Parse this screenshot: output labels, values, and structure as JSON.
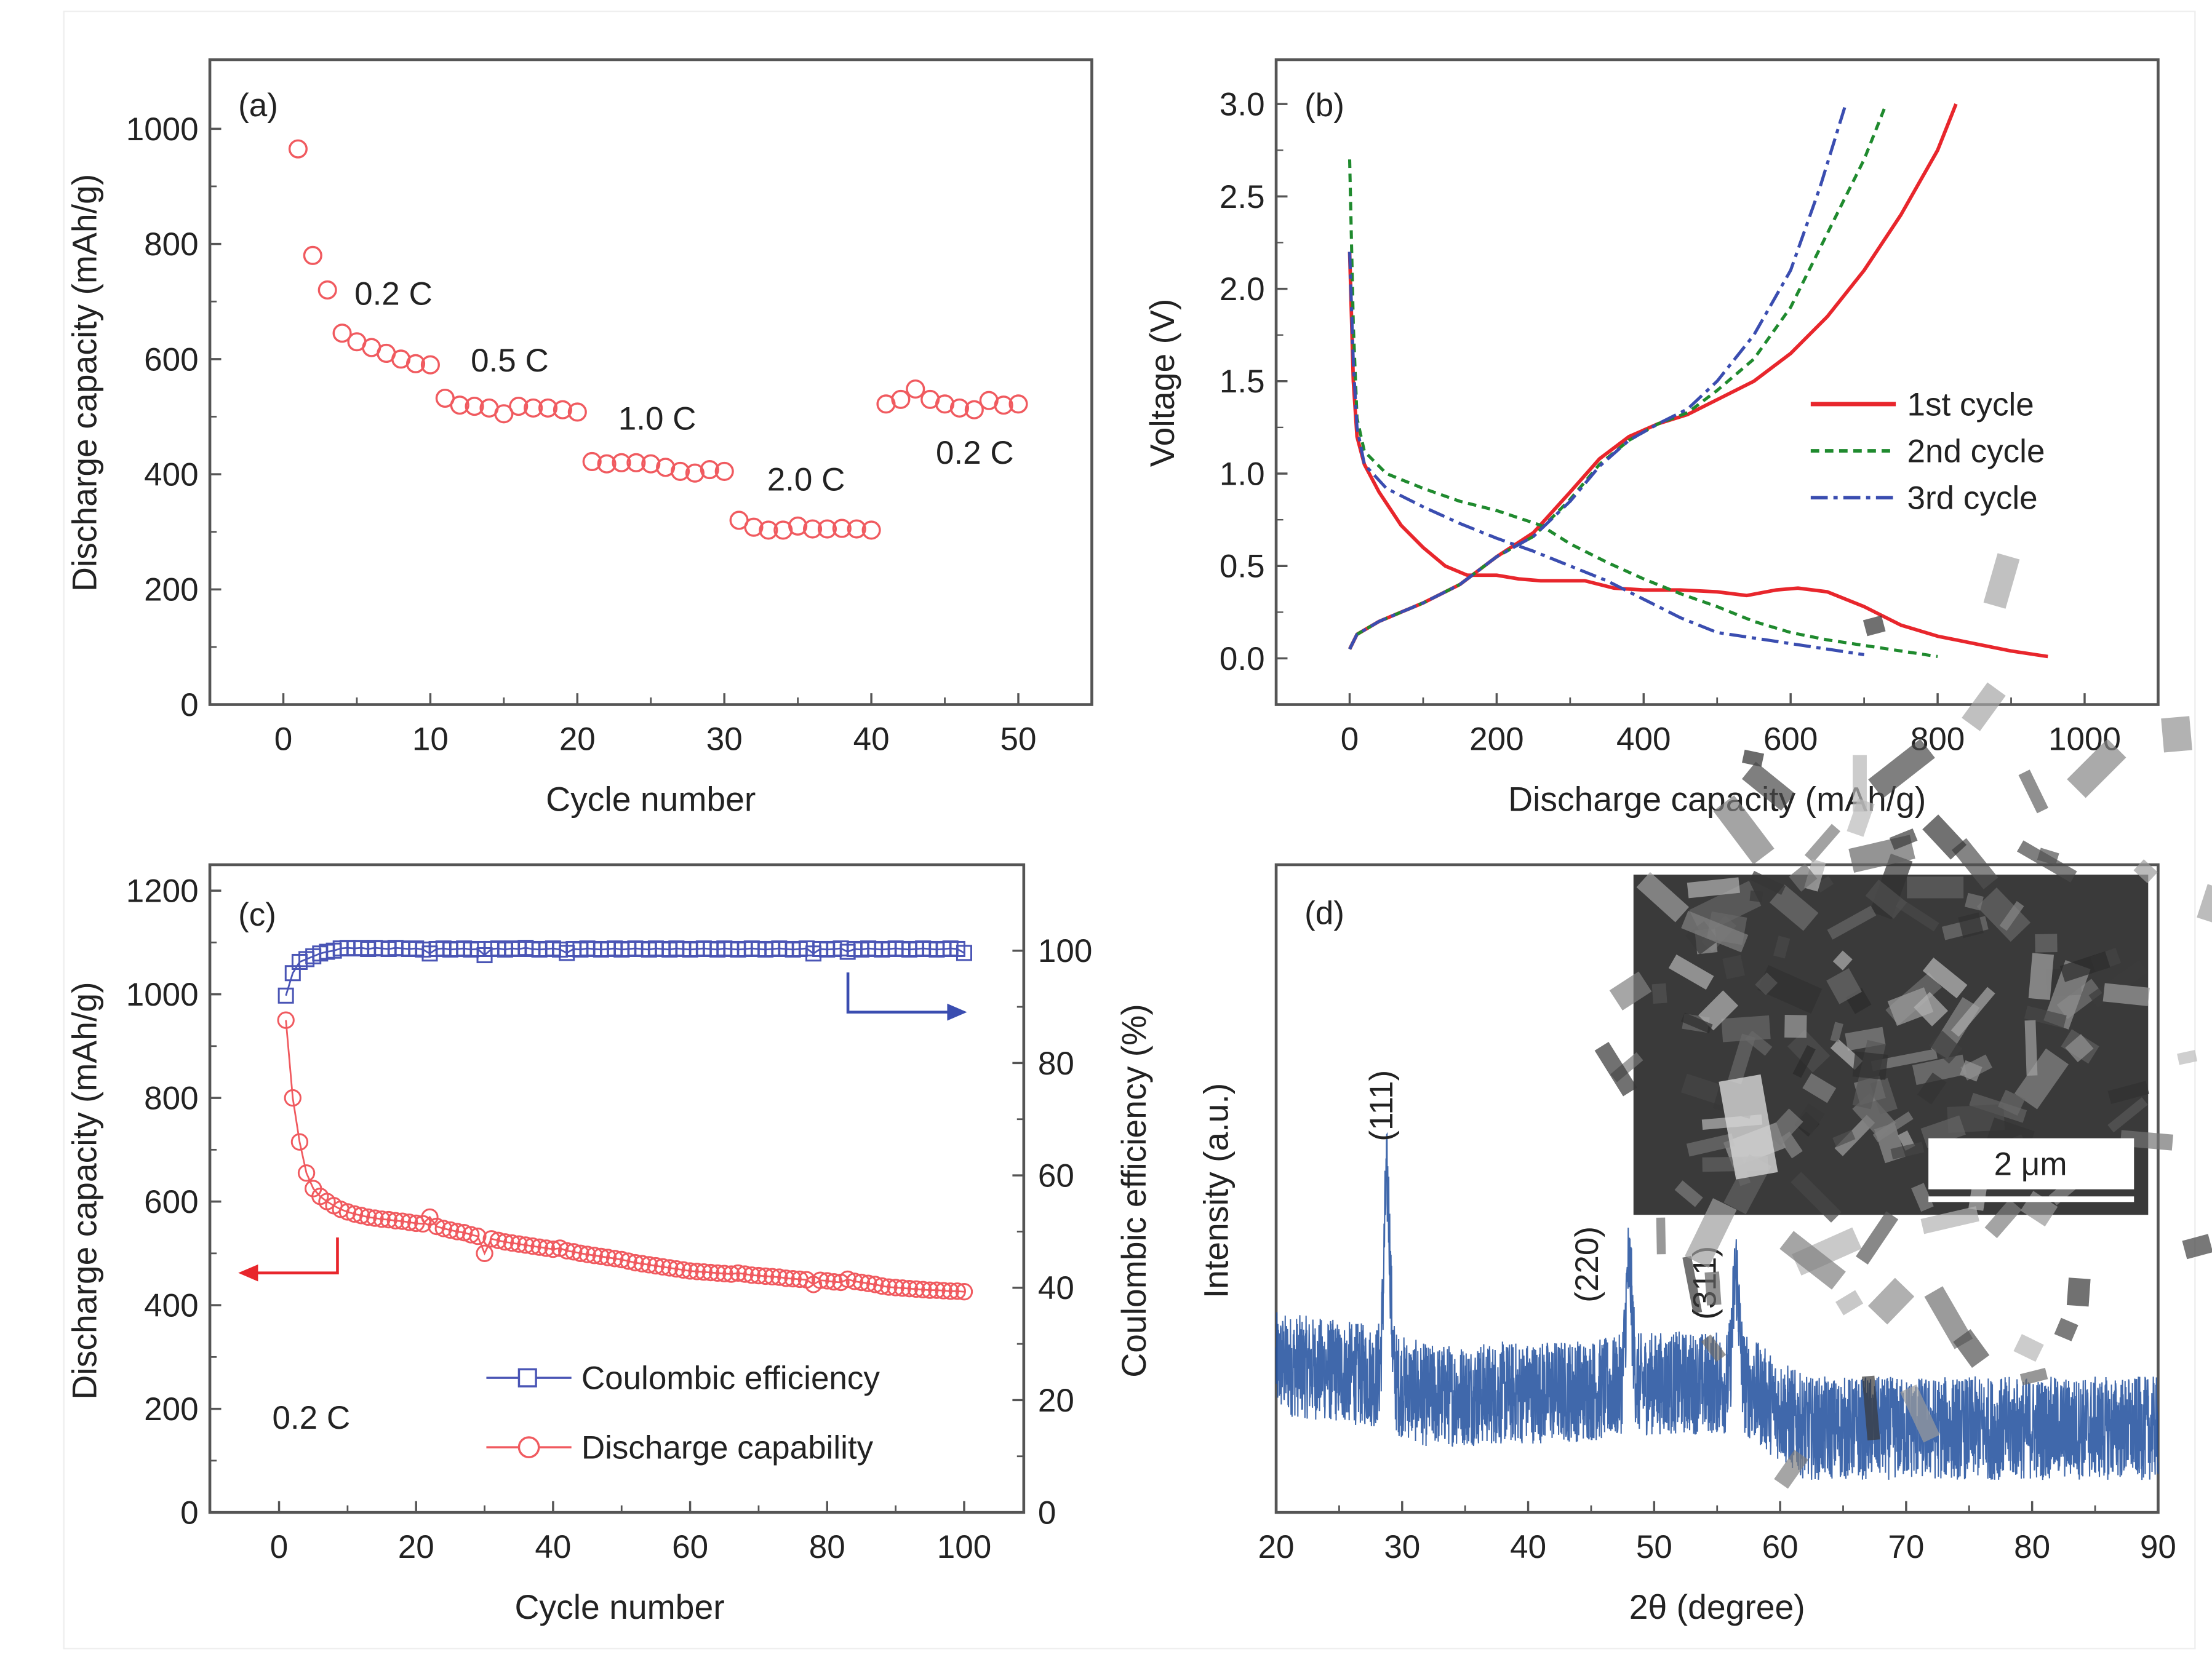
{
  "chart_data": [
    {
      "panel": "(a)",
      "type": "scatter",
      "xlabel": "Cycle number",
      "ylabel": "Discharge capacity (mAh/g)",
      "xlim": [
        -5,
        55
      ],
      "ylim": [
        0,
        1120
      ],
      "xticks": [
        0,
        10,
        20,
        30,
        40,
        50
      ],
      "yticks": [
        0,
        200,
        400,
        600,
        800,
        1000
      ],
      "marker_color": "#f05a5f",
      "annotations": [
        "0.2 C",
        "0.5 C",
        "1.0 C",
        "2.0 C",
        "0.2 C"
      ],
      "x": [
        1,
        2,
        3,
        4,
        5,
        6,
        7,
        8,
        9,
        10,
        11,
        12,
        13,
        14,
        15,
        16,
        17,
        18,
        19,
        20,
        21,
        22,
        23,
        24,
        25,
        26,
        27,
        28,
        29,
        30,
        31,
        32,
        33,
        34,
        35,
        36,
        37,
        38,
        39,
        40,
        41,
        42,
        43,
        44,
        45,
        46,
        47,
        48,
        49,
        50
      ],
      "values": [
        965,
        780,
        720,
        645,
        630,
        620,
        610,
        600,
        592,
        590,
        532,
        520,
        518,
        515,
        505,
        518,
        515,
        515,
        512,
        508,
        422,
        418,
        420,
        420,
        418,
        412,
        405,
        402,
        408,
        405,
        320,
        308,
        303,
        303,
        310,
        305,
        305,
        306,
        305,
        303,
        522,
        530,
        548,
        530,
        522,
        515,
        512,
        528,
        520,
        522
      ]
    },
    {
      "panel": "(b)",
      "type": "line",
      "xlabel": "Discharge capacity (mAh/g)",
      "ylabel": "Voltage (V)",
      "xlim": [
        -100,
        1100
      ],
      "ylim": [
        -0.25,
        3.24
      ],
      "xticks": [
        0,
        200,
        400,
        600,
        800,
        1000
      ],
      "yticks": [
        "0.0",
        "0.5",
        "1.0",
        "1.5",
        "2.0",
        "2.5",
        "3.0"
      ],
      "legend_position": "center-right",
      "series": [
        {
          "name": "1st cycle",
          "color": "#e8262c",
          "style": "solid",
          "discharge": [
            [
              0,
              2.2
            ],
            [
              5,
              1.5
            ],
            [
              10,
              1.2
            ],
            [
              20,
              1.05
            ],
            [
              40,
              0.9
            ],
            [
              70,
              0.72
            ],
            [
              100,
              0.6
            ],
            [
              130,
              0.5
            ],
            [
              160,
              0.45
            ],
            [
              200,
              0.45
            ],
            [
              230,
              0.43
            ],
            [
              260,
              0.42
            ],
            [
              320,
              0.42
            ],
            [
              360,
              0.38
            ],
            [
              400,
              0.37
            ],
            [
              450,
              0.37
            ],
            [
              500,
              0.36
            ],
            [
              540,
              0.34
            ],
            [
              580,
              0.37
            ],
            [
              610,
              0.38
            ],
            [
              650,
              0.36
            ],
            [
              700,
              0.28
            ],
            [
              750,
              0.18
            ],
            [
              800,
              0.12
            ],
            [
              850,
              0.08
            ],
            [
              900,
              0.04
            ],
            [
              950,
              0.01
            ]
          ],
          "charge": [
            [
              0,
              0.05
            ],
            [
              10,
              0.13
            ],
            [
              40,
              0.2
            ],
            [
              100,
              0.3
            ],
            [
              150,
              0.4
            ],
            [
              200,
              0.55
            ],
            [
              250,
              0.68
            ],
            [
              300,
              0.9
            ],
            [
              340,
              1.08
            ],
            [
              380,
              1.2
            ],
            [
              420,
              1.27
            ],
            [
              460,
              1.32
            ],
            [
              500,
              1.4
            ],
            [
              550,
              1.5
            ],
            [
              600,
              1.65
            ],
            [
              650,
              1.85
            ],
            [
              700,
              2.1
            ],
            [
              750,
              2.4
            ],
            [
              800,
              2.75
            ],
            [
              825,
              3.0
            ]
          ]
        },
        {
          "name": "2nd cycle",
          "color": "#1f8a2e",
          "style": "dash",
          "discharge": [
            [
              0,
              2.7
            ],
            [
              5,
              1.8
            ],
            [
              10,
              1.3
            ],
            [
              20,
              1.12
            ],
            [
              50,
              1.0
            ],
            [
              100,
              0.92
            ],
            [
              150,
              0.85
            ],
            [
              200,
              0.8
            ],
            [
              260,
              0.72
            ],
            [
              300,
              0.62
            ],
            [
              350,
              0.52
            ],
            [
              400,
              0.43
            ],
            [
              450,
              0.35
            ],
            [
              500,
              0.28
            ],
            [
              550,
              0.2
            ],
            [
              600,
              0.14
            ],
            [
              650,
              0.1
            ],
            [
              700,
              0.07
            ],
            [
              750,
              0.04
            ],
            [
              800,
              0.01
            ]
          ],
          "charge": [
            [
              0,
              0.05
            ],
            [
              10,
              0.13
            ],
            [
              40,
              0.2
            ],
            [
              100,
              0.3
            ],
            [
              150,
              0.4
            ],
            [
              200,
              0.55
            ],
            [
              250,
              0.66
            ],
            [
              300,
              0.86
            ],
            [
              340,
              1.05
            ],
            [
              380,
              1.18
            ],
            [
              420,
              1.27
            ],
            [
              460,
              1.33
            ],
            [
              500,
              1.45
            ],
            [
              550,
              1.62
            ],
            [
              600,
              1.9
            ],
            [
              650,
              2.3
            ],
            [
              700,
              2.7
            ],
            [
              730,
              3.0
            ]
          ]
        },
        {
          "name": "3rd cycle",
          "color": "#3a4db0",
          "style": "dashdot",
          "discharge": [
            [
              0,
              2.2
            ],
            [
              5,
              1.6
            ],
            [
              10,
              1.25
            ],
            [
              20,
              1.05
            ],
            [
              50,
              0.92
            ],
            [
              100,
              0.82
            ],
            [
              150,
              0.73
            ],
            [
              200,
              0.65
            ],
            [
              250,
              0.58
            ],
            [
              300,
              0.5
            ],
            [
              350,
              0.42
            ],
            [
              400,
              0.32
            ],
            [
              450,
              0.22
            ],
            [
              500,
              0.14
            ],
            [
              550,
              0.11
            ],
            [
              600,
              0.08
            ],
            [
              650,
              0.05
            ],
            [
              700,
              0.02
            ]
          ],
          "charge": [
            [
              0,
              0.05
            ],
            [
              10,
              0.13
            ],
            [
              40,
              0.2
            ],
            [
              100,
              0.3
            ],
            [
              150,
              0.4
            ],
            [
              200,
              0.55
            ],
            [
              250,
              0.66
            ],
            [
              300,
              0.85
            ],
            [
              340,
              1.04
            ],
            [
              380,
              1.18
            ],
            [
              420,
              1.27
            ],
            [
              460,
              1.35
            ],
            [
              500,
              1.5
            ],
            [
              550,
              1.75
            ],
            [
              600,
              2.1
            ],
            [
              640,
              2.55
            ],
            [
              675,
              3.0
            ]
          ]
        }
      ]
    },
    {
      "panel": "(c)",
      "type": "line",
      "xlabel": "Cycle number",
      "ylabel": "Discharge capacity (mAh/g)",
      "ylabel_right": "Coulombic efficiency (%)",
      "xlim": [
        -10.1,
        108.7
      ],
      "ylim": [
        0,
        1250
      ],
      "ylim_right": [
        0,
        115.3
      ],
      "xticks": [
        0,
        20,
        40,
        60,
        80,
        100
      ],
      "yticks": [
        0,
        200,
        400,
        600,
        800,
        1000,
        1200
      ],
      "yticks_right": [
        0,
        20,
        40,
        60,
        80,
        100
      ],
      "annotation": "0.2 C",
      "legend_position": "bottom-center",
      "series": [
        {
          "name": "Coulombic efficiency",
          "axis": "right",
          "marker": "square",
          "color": "#4a55b5",
          "values": [
            92,
            96,
            98,
            98.5,
            99,
            99.5,
            99.8,
            100,
            100.4,
            100.5,
            100.4,
            100.5,
            100.3,
            100.5,
            100.4,
            100.3,
            100.5,
            100.4,
            100.3,
            100.4,
            100.2,
            99.5,
            100.3,
            100.4,
            100.2,
            100.3,
            100.4,
            100.2,
            100.3,
            99.2,
            100.3,
            100.4,
            100.2,
            100.4,
            100.3,
            100.5,
            100.3,
            100.2,
            100.3,
            100.4,
            100.2,
            99.6,
            100.3,
            100.2,
            100.4,
            100.3,
            100.2,
            100.3,
            100.4,
            100.2,
            100.3,
            100.4,
            100.3,
            100.2,
            100.4,
            100.3,
            100.2,
            100.4,
            100.3,
            100.2,
            100.3,
            100.4,
            100.3,
            100.2,
            100.4,
            100.3,
            100.2,
            100.3,
            100.4,
            100.3,
            100.2,
            100.3,
            100.4,
            100.3,
            100.2,
            100.3,
            100.4,
            99.5,
            100.3,
            100.2,
            100.3,
            100.4,
            99.8,
            100.3,
            100.2,
            100.4,
            100.3,
            100.2,
            100.3,
            100.4,
            100.3,
            100.2,
            100.3,
            100.4,
            100.3,
            100.2,
            100.3,
            100.4,
            100.3,
            99.6
          ]
        },
        {
          "name": "Discharge capability",
          "axis": "left",
          "marker": "circle",
          "color": "#f05a5f",
          "values": [
            950,
            800,
            715,
            655,
            625,
            610,
            600,
            592,
            585,
            580,
            576,
            573,
            570,
            568,
            566,
            565,
            563,
            562,
            560,
            558,
            557,
            570,
            552,
            548,
            545,
            542,
            540,
            536,
            533,
            500,
            528,
            525,
            522,
            520,
            518,
            516,
            514,
            512,
            510,
            508,
            510,
            505,
            503,
            500,
            498,
            496,
            494,
            492,
            490,
            488,
            485,
            482,
            480,
            478,
            476,
            474,
            472,
            470,
            468,
            466,
            465,
            464,
            463,
            462,
            461,
            460,
            462,
            460,
            458,
            457,
            456,
            455,
            454,
            452,
            451,
            450,
            449,
            440,
            448,
            447,
            445,
            444,
            450,
            446,
            444,
            442,
            440,
            437,
            435,
            434,
            433,
            432,
            431,
            430,
            429,
            429,
            428,
            427,
            427,
            426
          ]
        }
      ]
    },
    {
      "panel": "(d)",
      "type": "line",
      "xlabel": "2θ (degree)",
      "ylabel": "Intensity (a.u.)",
      "xlim": [
        20,
        90
      ],
      "ylim": [
        0,
        1
      ],
      "xticks": [
        20,
        30,
        40,
        50,
        60,
        70,
        80,
        90
      ],
      "color": "#1f4e9c",
      "baseline": [
        [
          20,
          0.23
        ],
        [
          28,
          0.21
        ],
        [
          32,
          0.18
        ],
        [
          46,
          0.19
        ],
        [
          50,
          0.2
        ],
        [
          57,
          0.2
        ],
        [
          62,
          0.13
        ],
        [
          90,
          0.13
        ]
      ],
      "noise_amplitude": 0.08,
      "peaks": [
        {
          "label": "(111)",
          "two_theta": 28.8,
          "intensity": 0.56
        },
        {
          "label": "(220)",
          "two_theta": 48.0,
          "intensity": 0.43
        },
        {
          "label": "(311)",
          "two_theta": 56.5,
          "intensity": 0.42
        }
      ],
      "inset": {
        "scale_bar": "2 μm"
      }
    }
  ]
}
